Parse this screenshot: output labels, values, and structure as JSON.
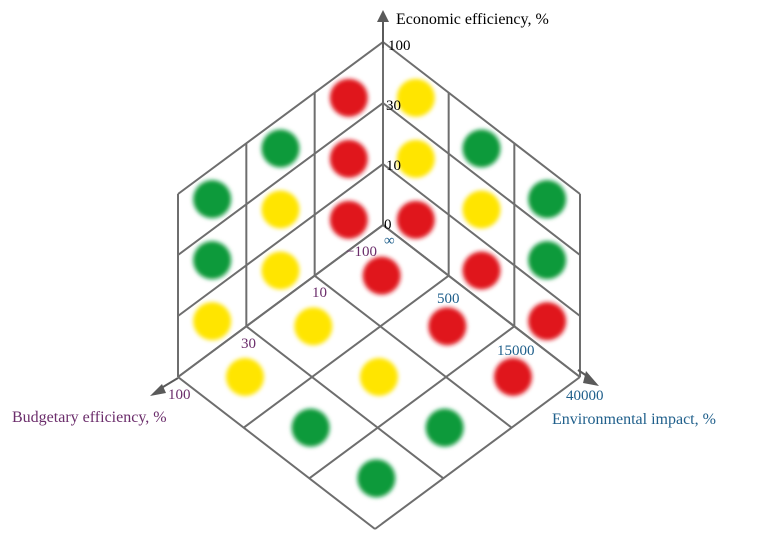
{
  "axes": {
    "economic": {
      "title": "Economic efficiency, %",
      "color": "#000000",
      "ticks": [
        "0",
        "10",
        "30",
        "100"
      ]
    },
    "budgetary": {
      "title": "Budgetary efficiency, %",
      "color": "#6b2d6b",
      "ticks": [
        "−100",
        "10",
        "30",
        "100"
      ]
    },
    "environmental": {
      "title": "Environmental impact, %",
      "color": "#1f5f8b",
      "ticks": [
        "∞",
        "500",
        "15000",
        "40000"
      ]
    }
  },
  "colors": {
    "red": "#e0141e",
    "yellow": "#ffe500",
    "green": "#0f9a3a"
  },
  "cells": {
    "left_face": [
      [
        "green",
        "green",
        "red"
      ],
      [
        "green",
        "yellow",
        "red"
      ],
      [
        "yellow",
        "yellow",
        "red"
      ]
    ],
    "right_face": [
      [
        "yellow",
        "green",
        "green"
      ],
      [
        "yellow",
        "yellow",
        "green"
      ],
      [
        "red",
        "red",
        "red"
      ]
    ],
    "floor": [
      [
        "red",
        "yellow",
        "yellow"
      ],
      [
        "red",
        "yellow",
        "green"
      ],
      [
        "red",
        "green",
        "green"
      ]
    ]
  }
}
